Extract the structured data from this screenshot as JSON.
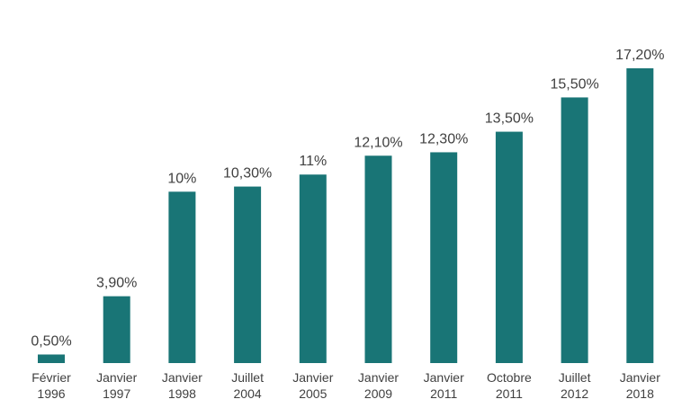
{
  "chart_data": {
    "type": "bar",
    "title": "",
    "xlabel": "",
    "ylabel": "",
    "ylim": [
      0,
      17.2
    ],
    "grid": false,
    "bar_color": "#197576",
    "categories": [
      [
        "Février",
        "1996"
      ],
      [
        "Janvier",
        "1997"
      ],
      [
        "Janvier",
        "1998"
      ],
      [
        "Juillet",
        "2004"
      ],
      [
        "Janvier",
        "2005"
      ],
      [
        "Janvier",
        "2009"
      ],
      [
        "Janvier",
        "2011"
      ],
      [
        "Octobre",
        "2011"
      ],
      [
        "Juillet",
        "2012"
      ],
      [
        "Janvier",
        "2018"
      ]
    ],
    "values": [
      0.5,
      3.9,
      10,
      10.3,
      11,
      12.1,
      12.3,
      13.5,
      15.5,
      17.2
    ],
    "data_labels": [
      "0,50%",
      "3,90%",
      "10%",
      "10,30%",
      "11%",
      "12,10%",
      "12,30%",
      "13,50%",
      "15,50%",
      "17,20%"
    ]
  }
}
